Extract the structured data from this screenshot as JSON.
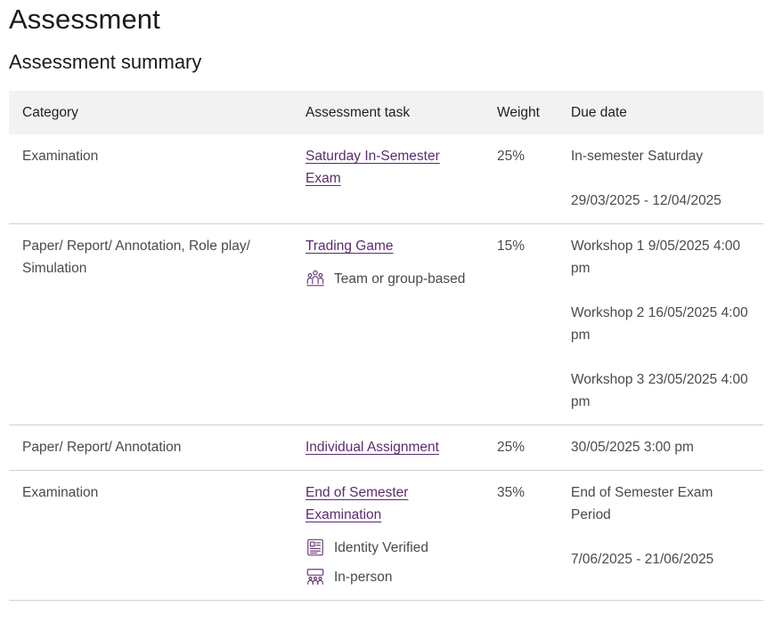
{
  "page": {
    "title": "Assessment",
    "section_title": "Assessment summary"
  },
  "table": {
    "headers": {
      "category": "Category",
      "task": "Assessment task",
      "weight": "Weight",
      "due": "Due date"
    },
    "rows": [
      {
        "category": "Examination",
        "task": "Saturday In-Semester Exam",
        "weight": "25%",
        "due": [
          "In-semester Saturday",
          "29/03/2025 - 12/04/2025"
        ]
      },
      {
        "category": "Paper/ Report/ Annotation, Role play/ Simulation",
        "task": "Trading Game",
        "tags": [
          {
            "icon": "group-icon",
            "label": "Team or group-based"
          }
        ],
        "weight": "15%",
        "due": [
          "Workshop 1 9/05/2025 4:00 pm",
          "Workshop 2 16/05/2025 4:00 pm",
          "Workshop 3 23/05/2025 4:00 pm"
        ]
      },
      {
        "category": "Paper/ Report/ Annotation",
        "task": "Individual Assignment",
        "weight": "25%",
        "due": [
          "30/05/2025 3:00 pm"
        ]
      },
      {
        "category": "Examination",
        "task": "End of Semester Examination",
        "tags": [
          {
            "icon": "id-card-icon",
            "label": "Identity Verified"
          },
          {
            "icon": "in-person-icon",
            "label": "In-person"
          }
        ],
        "weight": "35%",
        "due": [
          "End of Semester Exam Period",
          "7/06/2025 - 21/06/2025"
        ]
      }
    ]
  },
  "colors": {
    "link": "#5b2c6f",
    "icon": "#6a3a7a",
    "header_bg": "#f2f2f2",
    "row_border": "#d0d0d0"
  }
}
